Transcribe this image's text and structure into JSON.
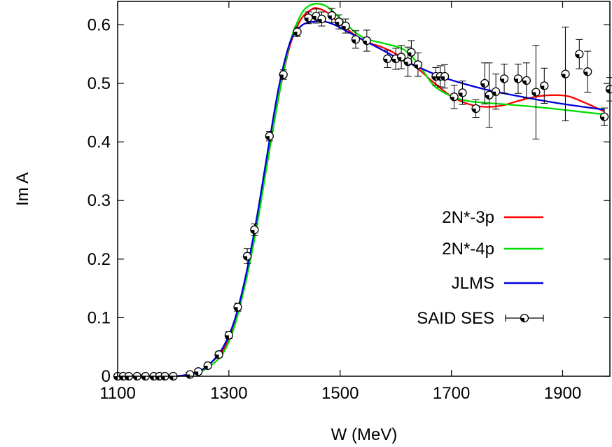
{
  "chart_data": {
    "type": "line",
    "xlabel": "W (MeV)",
    "ylabel": "Im A",
    "xlim": [
      1100,
      1985
    ],
    "ylim": [
      0,
      0.64
    ],
    "grid": false,
    "legend_placement": "right-middle",
    "x_ticks": [
      {
        "value": 1100,
        "label": "1100"
      },
      {
        "value": 1300,
        "label": "1300"
      },
      {
        "value": 1500,
        "label": "1500"
      },
      {
        "value": 1700,
        "label": "1700"
      },
      {
        "value": 1900,
        "label": "1900"
      }
    ],
    "y_ticks": [
      {
        "value": 0,
        "label": "0"
      },
      {
        "value": 0.1,
        "label": "0.1"
      },
      {
        "value": 0.2,
        "label": "0.2"
      },
      {
        "value": 0.3,
        "label": "0.3"
      },
      {
        "value": 0.4,
        "label": "0.4"
      },
      {
        "value": 0.5,
        "label": "0.5"
      },
      {
        "value": 0.6,
        "label": "0.6"
      }
    ],
    "series": [
      {
        "name": "2N*-3p",
        "color": "#ff0000",
        "points": [
          [
            1100,
            0
          ],
          [
            1200,
            0
          ],
          [
            1230,
            0.004
          ],
          [
            1250,
            0.01
          ],
          [
            1270,
            0.025
          ],
          [
            1290,
            0.045
          ],
          [
            1310,
            0.09
          ],
          [
            1330,
            0.165
          ],
          [
            1350,
            0.26
          ],
          [
            1370,
            0.37
          ],
          [
            1390,
            0.48
          ],
          [
            1410,
            0.565
          ],
          [
            1430,
            0.61
          ],
          [
            1450,
            0.627
          ],
          [
            1460,
            0.628
          ],
          [
            1475,
            0.622
          ],
          [
            1490,
            0.61
          ],
          [
            1510,
            0.595
          ],
          [
            1530,
            0.58
          ],
          [
            1550,
            0.57
          ],
          [
            1580,
            0.56
          ],
          [
            1610,
            0.545
          ],
          [
            1640,
            0.525
          ],
          [
            1670,
            0.5
          ],
          [
            1700,
            0.478
          ],
          [
            1730,
            0.465
          ],
          [
            1760,
            0.46
          ],
          [
            1790,
            0.462
          ],
          [
            1820,
            0.47
          ],
          [
            1850,
            0.477
          ],
          [
            1880,
            0.48
          ],
          [
            1910,
            0.478
          ],
          [
            1940,
            0.467
          ],
          [
            1975,
            0.452
          ]
        ]
      },
      {
        "name": "2N*-4p",
        "color": "#00dd00",
        "points": [
          [
            1100,
            0
          ],
          [
            1200,
            0
          ],
          [
            1230,
            0.003
          ],
          [
            1250,
            0.008
          ],
          [
            1270,
            0.02
          ],
          [
            1290,
            0.04
          ],
          [
            1310,
            0.085
          ],
          [
            1330,
            0.16
          ],
          [
            1350,
            0.255
          ],
          [
            1370,
            0.37
          ],
          [
            1390,
            0.48
          ],
          [
            1410,
            0.57
          ],
          [
            1430,
            0.618
          ],
          [
            1445,
            0.633
          ],
          [
            1460,
            0.636
          ],
          [
            1475,
            0.632
          ],
          [
            1490,
            0.62
          ],
          [
            1510,
            0.602
          ],
          [
            1530,
            0.585
          ],
          [
            1550,
            0.575
          ],
          [
            1580,
            0.568
          ],
          [
            1610,
            0.56
          ],
          [
            1630,
            0.545
          ],
          [
            1650,
            0.52
          ],
          [
            1670,
            0.495
          ],
          [
            1700,
            0.478
          ],
          [
            1730,
            0.47
          ],
          [
            1760,
            0.467
          ],
          [
            1800,
            0.464
          ],
          [
            1850,
            0.46
          ],
          [
            1900,
            0.455
          ],
          [
            1975,
            0.447
          ]
        ]
      },
      {
        "name": "JLMS",
        "color": "#0000dd",
        "points": [
          [
            1100,
            0
          ],
          [
            1200,
            0
          ],
          [
            1230,
            0.004
          ],
          [
            1250,
            0.01
          ],
          [
            1270,
            0.025
          ],
          [
            1290,
            0.05
          ],
          [
            1310,
            0.095
          ],
          [
            1330,
            0.17
          ],
          [
            1350,
            0.27
          ],
          [
            1370,
            0.385
          ],
          [
            1390,
            0.495
          ],
          [
            1410,
            0.57
          ],
          [
            1430,
            0.598
          ],
          [
            1450,
            0.605
          ],
          [
            1470,
            0.606
          ],
          [
            1490,
            0.6
          ],
          [
            1510,
            0.59
          ],
          [
            1540,
            0.575
          ],
          [
            1570,
            0.56
          ],
          [
            1600,
            0.545
          ],
          [
            1640,
            0.528
          ],
          [
            1680,
            0.512
          ],
          [
            1720,
            0.5
          ],
          [
            1760,
            0.49
          ],
          [
            1800,
            0.482
          ],
          [
            1850,
            0.473
          ],
          [
            1900,
            0.465
          ],
          [
            1975,
            0.455
          ]
        ]
      }
    ],
    "points_series": {
      "name": "SAID SES",
      "color": "#000000",
      "data": [
        [
          1100,
          0,
          0
        ],
        [
          1110,
          0,
          0
        ],
        [
          1120,
          0,
          0
        ],
        [
          1135,
          0,
          0
        ],
        [
          1150,
          0,
          0
        ],
        [
          1165,
          0,
          0
        ],
        [
          1175,
          0,
          0
        ],
        [
          1185,
          0,
          0
        ],
        [
          1200,
          0,
          0
        ],
        [
          1230,
          0.003,
          0.002
        ],
        [
          1245,
          0.008,
          0.003
        ],
        [
          1262,
          0.018,
          0.004
        ],
        [
          1282,
          0.037,
          0.005
        ],
        [
          1300,
          0.07,
          0.006
        ],
        [
          1316,
          0.118,
          0.007
        ],
        [
          1333,
          0.205,
          0.013
        ],
        [
          1346,
          0.25,
          0.01
        ],
        [
          1373,
          0.41,
          0.008
        ],
        [
          1398,
          0.515,
          0.008
        ],
        [
          1423,
          0.588,
          0.008
        ],
        [
          1443,
          0.612,
          0.01
        ],
        [
          1457,
          0.615,
          0.012
        ],
        [
          1467,
          0.61,
          0.012
        ],
        [
          1485,
          0.616,
          0.012
        ],
        [
          1498,
          0.605,
          0.012
        ],
        [
          1510,
          0.598,
          0.012
        ],
        [
          1528,
          0.575,
          0.015
        ],
        [
          1548,
          0.573,
          0.018
        ],
        [
          1585,
          0.542,
          0.015
        ],
        [
          1600,
          0.542,
          0.018
        ],
        [
          1610,
          0.545,
          0.02
        ],
        [
          1622,
          0.537,
          0.025
        ],
        [
          1628,
          0.553,
          0.02
        ],
        [
          1640,
          0.532,
          0.02
        ],
        [
          1672,
          0.512,
          0.015
        ],
        [
          1680,
          0.512,
          0.018
        ],
        [
          1688,
          0.512,
          0.02
        ],
        [
          1705,
          0.477,
          0.02
        ],
        [
          1720,
          0.484,
          0.02
        ],
        [
          1744,
          0.457,
          0.015
        ],
        [
          1760,
          0.5,
          0.035
        ],
        [
          1768,
          0.48,
          0.055
        ],
        [
          1780,
          0.486,
          0.03
        ],
        [
          1795,
          0.508,
          0.025
        ],
        [
          1820,
          0.508,
          0.025
        ],
        [
          1835,
          0.505,
          0.03
        ],
        [
          1852,
          0.485,
          0.08
        ],
        [
          1867,
          0.496,
          0.03
        ],
        [
          1905,
          0.516,
          0.08
        ],
        [
          1930,
          0.55,
          0.025
        ],
        [
          1945,
          0.52,
          0.035
        ],
        [
          1975,
          0.443,
          0.015
        ],
        [
          1985,
          0.49,
          0.02
        ]
      ]
    }
  }
}
